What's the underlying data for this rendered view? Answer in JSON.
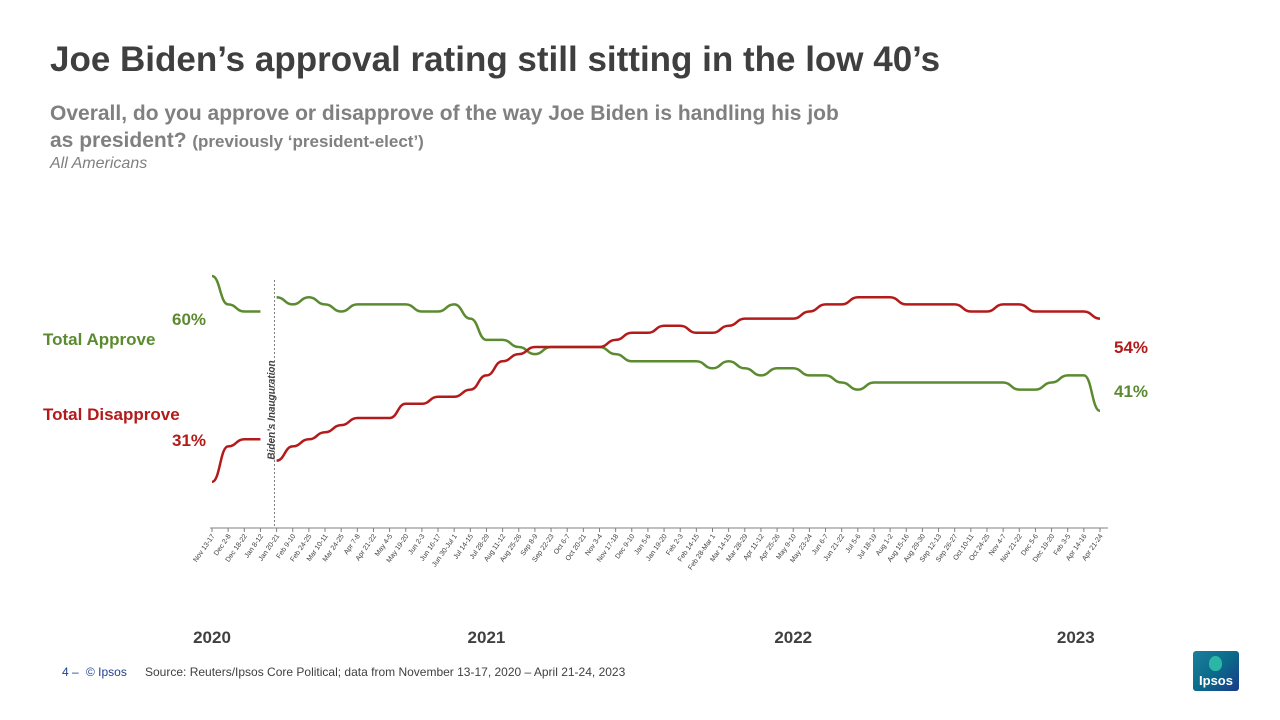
{
  "header": {
    "title": "Joe Biden’s approval rating still sitting in the low 40’s",
    "question_line1": "Overall, do you approve or disapprove of the way Joe Biden is handling his job",
    "question_line2": "as president?",
    "question_note": "(previously ‘president-elect’)",
    "population": "All Americans"
  },
  "footer": {
    "page_number": "4",
    "page_dash": "‒",
    "copyright": "© Ipsos",
    "source": "Source: Reuters/Ipsos Core Political; data from November  13-17, 2020 – April 21-24, 2023",
    "logo_text": "Ipsos"
  },
  "chart_data": {
    "type": "line",
    "title": "Joe Biden’s approval rating still sitting in the low 40’s",
    "ylabel": "",
    "xlabel": "",
    "ylim": [
      20,
      70
    ],
    "x": [
      "Nov 13-17",
      "Dec 2-8",
      "Dec 18-22",
      "Jan 8-12",
      "Jan 20-21",
      "Feb 9-10",
      "Feb 24-25",
      "Mar 10-11",
      "Mar 24-25",
      "Apr 7-8",
      "Apr 21-22",
      "May 4-5",
      "May 19-20",
      "Jun 2-3",
      "Jun 16-17",
      "Jun 30-Jul 1",
      "Jul 14-15",
      "Jul 28-29",
      "Aug 11-12",
      "Aug 25-26",
      "Sep 8-9",
      "Sep 22-23",
      "Oct 6-7",
      "Oct 20-21",
      "Nov 3-4",
      "Nov 17-18",
      "Dec 9-10",
      "Jan 5-6",
      "Jan 19-20",
      "Feb 2-3",
      "Feb 14-15",
      "Feb 28-Mar 1",
      "Mar 14-15",
      "Mar 28-29",
      "Apr 11-12",
      "Apr 25-26",
      "May 9-10",
      "May 23-24",
      "Jun 6-7",
      "Jun 21-22",
      "Jul 5-6",
      "Jul 18-19",
      "Aug 1-2",
      "Aug 15-16",
      "Aug 29-30",
      "Sep 12-13",
      "Sep 26-27",
      "Oct 10-11",
      "Oct 24-25",
      "Nov 4-7",
      "Nov 21-22",
      "Dec 5-6",
      "Dec 19-20",
      "Feb 3-5",
      "Apr 14-16",
      "Apr 21-24"
    ],
    "years": [
      {
        "label": "2020",
        "index": 0
      },
      {
        "label": "2021",
        "index": 17
      },
      {
        "label": "2022",
        "index": 36
      },
      {
        "label": "2023",
        "index": 53.5
      }
    ],
    "annotation": {
      "label": "Biden’s Inauguration",
      "index": 3.5
    },
    "series": [
      {
        "name": "Total Approve",
        "color": "#5b8a30",
        "start_label": "60%",
        "end_label": "41%",
        "gap_after_index": 3,
        "values": [
          60,
          56,
          55,
          55,
          57,
          56,
          57,
          56,
          55,
          56,
          56,
          56,
          56,
          55,
          55,
          56,
          54,
          51,
          51,
          50,
          49,
          50,
          50,
          50,
          50,
          49,
          48,
          48,
          48,
          48,
          48,
          47,
          48,
          47,
          46,
          47,
          47,
          46,
          46,
          45,
          44,
          45,
          45,
          45,
          45,
          45,
          45,
          45,
          45,
          45,
          44,
          44,
          45,
          46,
          46,
          41
        ]
      },
      {
        "name": "Total Disapprove",
        "color": "#b31a1a",
        "start_label": "31%",
        "end_label": "54%",
        "gap_after_index": 3,
        "values": [
          31,
          36,
          37,
          37,
          34,
          36,
          37,
          38,
          39,
          40,
          40,
          40,
          42,
          42,
          43,
          43,
          44,
          46,
          48,
          49,
          50,
          50,
          50,
          50,
          50,
          51,
          52,
          52,
          53,
          53,
          52,
          52,
          53,
          54,
          54,
          54,
          54,
          55,
          56,
          56,
          57,
          57,
          57,
          56,
          56,
          56,
          56,
          55,
          55,
          56,
          56,
          55,
          55,
          55,
          55,
          54
        ]
      }
    ]
  }
}
